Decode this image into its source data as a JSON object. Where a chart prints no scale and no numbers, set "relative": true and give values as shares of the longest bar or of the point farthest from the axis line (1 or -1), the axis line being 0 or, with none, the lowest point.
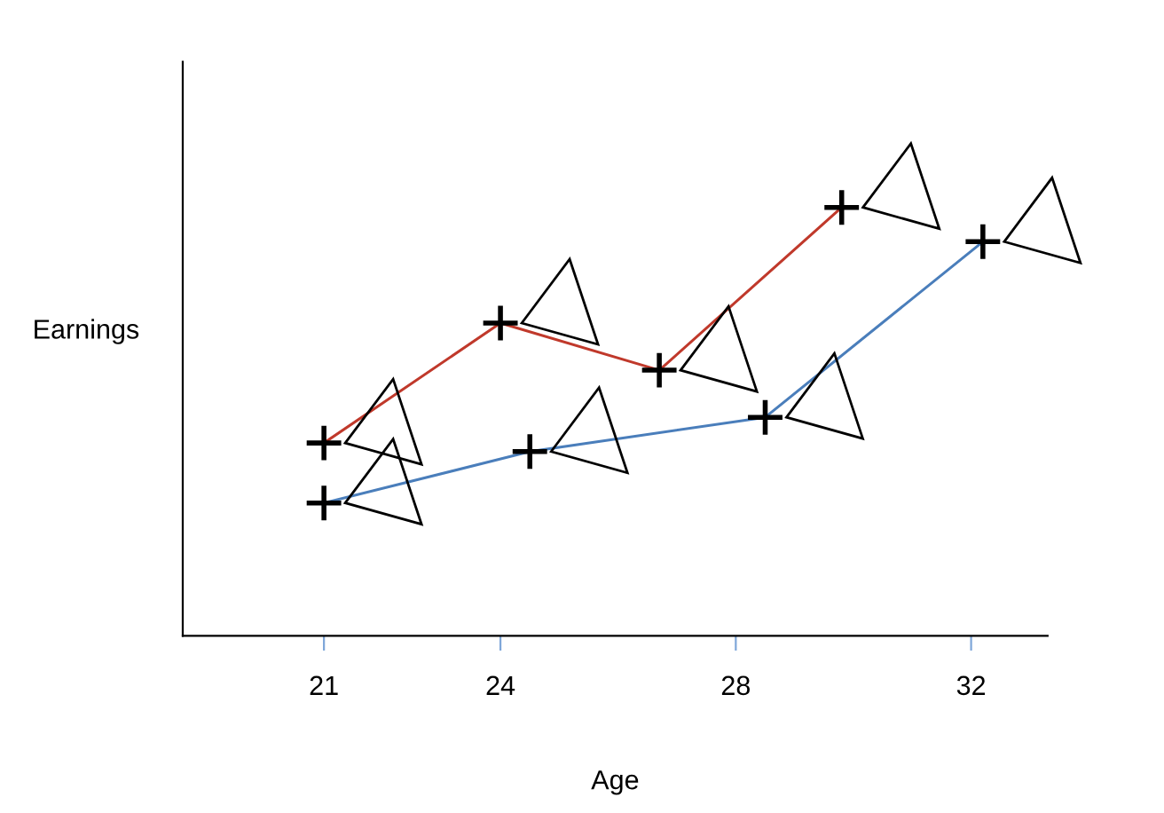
{
  "chart_data": {
    "type": "line",
    "xlabel": "Age",
    "ylabel": "Earnings",
    "relative": true,
    "xlim": [
      18.6,
      33.3
    ],
    "xticks": [
      21,
      24,
      28,
      32
    ],
    "marker": "cross",
    "line_style": "solid",
    "grid": false,
    "legend": false,
    "tick_labels": "x",
    "series": [
      {
        "color": "#c0392b",
        "x": [
          21,
          24.0,
          26.7,
          29.8
        ],
        "values": [
          0.45,
          0.73,
          0.62,
          1
        ]
      },
      {
        "color": "#4a7ebb",
        "x": [
          21,
          24.5,
          28.5,
          32.2
        ],
        "values": [
          0.31,
          0.43,
          0.51,
          0.92
        ]
      }
    ]
  }
}
